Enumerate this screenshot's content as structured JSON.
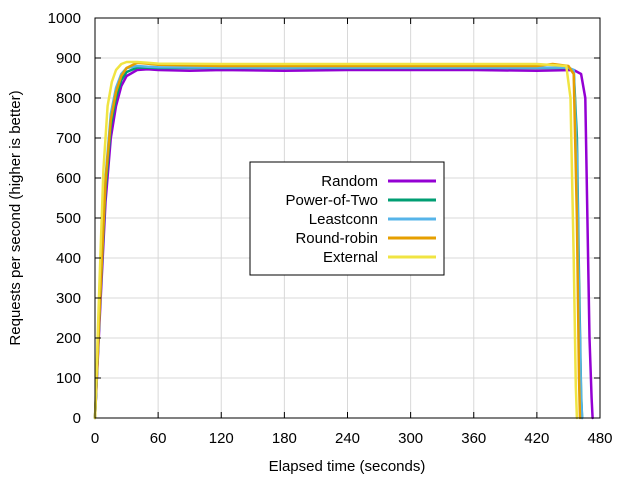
{
  "chart_data": {
    "type": "line",
    "xlabel": "Elapsed time (seconds)",
    "ylabel": "Requests per second (higher is better)",
    "xlim": [
      0,
      480
    ],
    "ylim": [
      0,
      1000
    ],
    "x_ticks": [
      0,
      60,
      120,
      180,
      240,
      300,
      360,
      420,
      480
    ],
    "y_ticks": [
      0,
      100,
      200,
      300,
      400,
      500,
      600,
      700,
      800,
      900,
      1000
    ],
    "grid": true,
    "legend_position": "center",
    "series": [
      {
        "name": "Random",
        "color": "#9400d3",
        "x": [
          0,
          5,
          10,
          15,
          20,
          25,
          30,
          40,
          50,
          60,
          90,
          120,
          180,
          240,
          300,
          360,
          420,
          455,
          462,
          466,
          468,
          470,
          472,
          473
        ],
        "y": [
          0,
          280,
          540,
          700,
          780,
          830,
          855,
          870,
          872,
          870,
          868,
          870,
          868,
          870,
          870,
          870,
          868,
          870,
          860,
          800,
          500,
          200,
          50,
          0
        ]
      },
      {
        "name": "Power-of-Two",
        "color": "#009e73",
        "x": [
          0,
          5,
          10,
          15,
          20,
          25,
          30,
          40,
          50,
          60,
          120,
          180,
          240,
          300,
          360,
          420,
          450,
          455,
          458,
          460,
          462,
          463
        ],
        "y": [
          0,
          300,
          570,
          730,
          800,
          845,
          865,
          876,
          876,
          875,
          875,
          875,
          875,
          875,
          875,
          875,
          875,
          870,
          700,
          350,
          60,
          0
        ]
      },
      {
        "name": "Leastconn",
        "color": "#56b4e9",
        "x": [
          0,
          5,
          10,
          15,
          20,
          25,
          30,
          40,
          50,
          60,
          120,
          180,
          240,
          300,
          360,
          420,
          450,
          455,
          458,
          460,
          462,
          463
        ],
        "y": [
          0,
          320,
          600,
          760,
          825,
          860,
          875,
          880,
          878,
          877,
          876,
          876,
          876,
          876,
          876,
          876,
          876,
          870,
          650,
          300,
          50,
          0
        ]
      },
      {
        "name": "Round-robin",
        "color": "#e69f00",
        "x": [
          0,
          5,
          10,
          15,
          20,
          25,
          30,
          40,
          50,
          60,
          120,
          180,
          240,
          300,
          360,
          420,
          435,
          450,
          455,
          458,
          460,
          461
        ],
        "y": [
          0,
          310,
          590,
          745,
          815,
          855,
          875,
          888,
          886,
          883,
          880,
          880,
          880,
          880,
          880,
          880,
          885,
          880,
          860,
          500,
          100,
          0
        ]
      },
      {
        "name": "External",
        "color": "#f0e442",
        "x": [
          0,
          4,
          8,
          12,
          16,
          20,
          25,
          30,
          40,
          50,
          60,
          120,
          180,
          240,
          300,
          360,
          420,
          448,
          452,
          455,
          457,
          458
        ],
        "y": [
          0,
          320,
          620,
          780,
          840,
          870,
          885,
          890,
          890,
          888,
          886,
          885,
          885,
          885,
          885,
          885,
          885,
          880,
          800,
          400,
          80,
          0
        ]
      }
    ]
  }
}
